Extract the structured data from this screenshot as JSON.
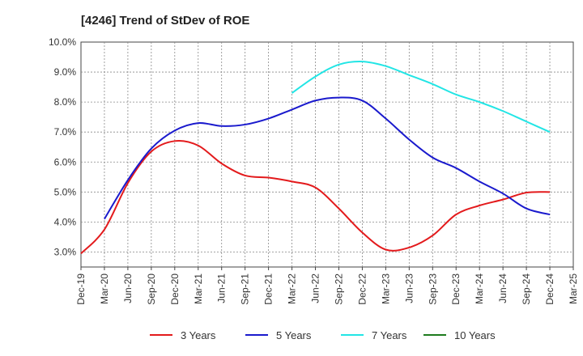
{
  "chart_data": {
    "type": "line",
    "title": "[4246]  Trend of StDev of ROE",
    "x_labels": [
      "Dec-19",
      "Mar-20",
      "Jun-20",
      "Sep-20",
      "Dec-20",
      "Mar-21",
      "Jun-21",
      "Sep-21",
      "Dec-21",
      "Mar-22",
      "Jun-22",
      "Sep-22",
      "Dec-22",
      "Mar-23",
      "Jun-23",
      "Sep-23",
      "Dec-23",
      "Mar-24",
      "Jun-24",
      "Sep-24",
      "Dec-24",
      "Mar-25"
    ],
    "y_ticks": [
      "3.0%",
      "4.0%",
      "5.0%",
      "6.0%",
      "7.0%",
      "8.0%",
      "9.0%",
      "10.0%"
    ],
    "ylim": [
      2.5,
      10.0
    ],
    "grid": true,
    "legend_position": "bottom",
    "series": [
      {
        "name": "3 Years",
        "color": "#e31a1c",
        "start_index": 0,
        "values": [
          2.95,
          3.75,
          5.3,
          6.35,
          6.7,
          6.55,
          5.95,
          5.55,
          5.48,
          5.35,
          5.15,
          4.45,
          3.65,
          3.08,
          3.15,
          3.55,
          4.25,
          4.55,
          4.75,
          4.98,
          5.0
        ]
      },
      {
        "name": "5 Years",
        "color": "#1a1acd",
        "start_index": 1,
        "values": [
          4.1,
          5.4,
          6.45,
          7.05,
          7.3,
          7.2,
          7.25,
          7.45,
          7.75,
          8.05,
          8.15,
          8.05,
          7.45,
          6.75,
          6.15,
          5.8,
          5.35,
          4.95,
          4.45,
          4.25
        ]
      },
      {
        "name": "7 Years",
        "color": "#22e5e5",
        "start_index": 9,
        "values": [
          8.3,
          8.85,
          9.25,
          9.35,
          9.2,
          8.9,
          8.6,
          8.25,
          8.0,
          7.7,
          7.35,
          7.0
        ]
      },
      {
        "name": "10 Years",
        "color": "#1e7b1e",
        "start_index": 0,
        "values": []
      }
    ]
  }
}
